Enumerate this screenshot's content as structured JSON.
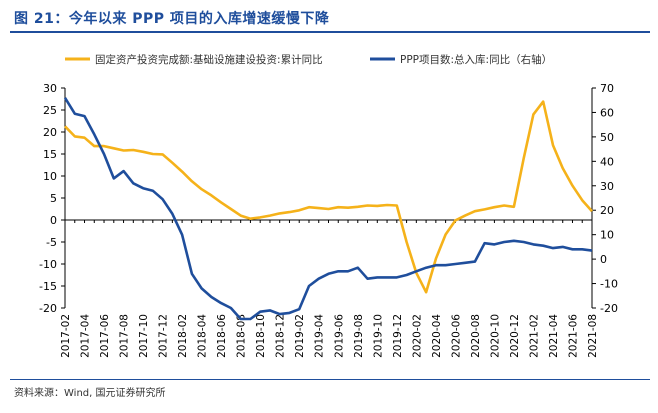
{
  "header": {
    "title": "图 21：今年以来 PPP 项目的入库增速缓慢下降"
  },
  "footer": {
    "source": "资料来源：Wind, 国元证券研究所"
  },
  "colors": {
    "series_fai": "#f5b21a",
    "series_ppp": "#1f4e9c",
    "title": "#1f4e9c",
    "axis": "#000000"
  },
  "chart_data": {
    "type": "line",
    "title": "",
    "x": [
      "2017-02",
      "2017-03",
      "2017-04",
      "2017-05",
      "2017-06",
      "2017-07",
      "2017-08",
      "2017-09",
      "2017-10",
      "2017-11",
      "2017-12",
      "2018-01",
      "2018-02",
      "2018-03",
      "2018-04",
      "2018-05",
      "2018-06",
      "2018-07",
      "2018-08",
      "2018-09",
      "2018-10",
      "2018-11",
      "2018-12",
      "2019-01",
      "2019-02",
      "2019-03",
      "2019-04",
      "2019-05",
      "2019-06",
      "2019-07",
      "2019-08",
      "2019-09",
      "2019-10",
      "2019-11",
      "2019-12",
      "2020-01",
      "2020-02",
      "2020-03",
      "2020-04",
      "2020-05",
      "2020-06",
      "2020-07",
      "2020-08",
      "2020-09",
      "2020-10",
      "2020-11",
      "2020-12",
      "2021-01",
      "2021-02",
      "2021-03",
      "2021-04",
      "2021-05",
      "2021-06",
      "2021-07",
      "2021-08"
    ],
    "x_tick_labels": [
      "2017-02",
      "2017-04",
      "2017-06",
      "2017-08",
      "2017-10",
      "2017-12",
      "2018-02",
      "2018-04",
      "2018-06",
      "2018-08",
      "2018-10",
      "2018-12",
      "2019-02",
      "2019-04",
      "2019-06",
      "2019-08",
      "2019-10",
      "2019-12",
      "2020-02",
      "2020-04",
      "2020-06",
      "2020-08",
      "2020-10",
      "2020-12",
      "2021-02",
      "2021-04",
      "2021-06",
      "2021-08"
    ],
    "y_left": {
      "ylim": [
        -20,
        30
      ],
      "ticks": [
        -20,
        -15,
        -10,
        -5,
        0,
        5,
        10,
        15,
        20,
        25,
        30
      ]
    },
    "y_right": {
      "ylim": [
        -20,
        70
      ],
      "ticks": [
        -20,
        -10,
        0,
        10,
        20,
        30,
        40,
        50,
        60,
        70
      ]
    },
    "legend_position": "top",
    "series": [
      {
        "name": "固定资产投资完成额:基础设施建设投资:累计同比",
        "axis": "left",
        "values": [
          21.3,
          19.0,
          18.7,
          16.8,
          16.8,
          16.3,
          15.8,
          15.9,
          15.5,
          15.0,
          14.9,
          13.0,
          11.0,
          8.8,
          7.0,
          5.6,
          4.0,
          2.5,
          1.0,
          0.3,
          0.6,
          1.0,
          1.5,
          1.8,
          2.2,
          2.9,
          2.7,
          2.5,
          2.9,
          2.8,
          3.0,
          3.3,
          3.2,
          3.4,
          3.3,
          -5.0,
          -12.0,
          -16.4,
          -8.8,
          -3.3,
          -0.1,
          1.0,
          2.0,
          2.4,
          2.9,
          3.3,
          3.0,
          14.0,
          24.0,
          26.9,
          17.0,
          11.8,
          7.8,
          4.5,
          2.0
        ]
      },
      {
        "name": "PPP项目数:总入库:同比（右轴）",
        "axis": "right",
        "values": [
          66.0,
          59.5,
          58.5,
          51.0,
          43.0,
          33.0,
          36.0,
          31.0,
          29.0,
          28.0,
          24.5,
          18.5,
          10.0,
          -6.0,
          -12.0,
          -15.5,
          -18.0,
          -20.0,
          -24.5,
          -24.5,
          -21.5,
          -21.0,
          -22.5,
          -22.0,
          -20.5,
          -11.0,
          -8.0,
          -6.0,
          -5.0,
          -5.0,
          -3.5,
          -8.0,
          -7.5,
          -7.5,
          -7.5,
          -6.5,
          -5.0,
          -3.5,
          -2.5,
          -2.5,
          -2.0,
          -1.5,
          -1.0,
          6.5,
          6.0,
          7.0,
          7.5,
          7.0,
          6.0,
          5.5,
          4.5,
          5.0,
          4.0,
          4.0,
          3.5
        ]
      }
    ]
  }
}
